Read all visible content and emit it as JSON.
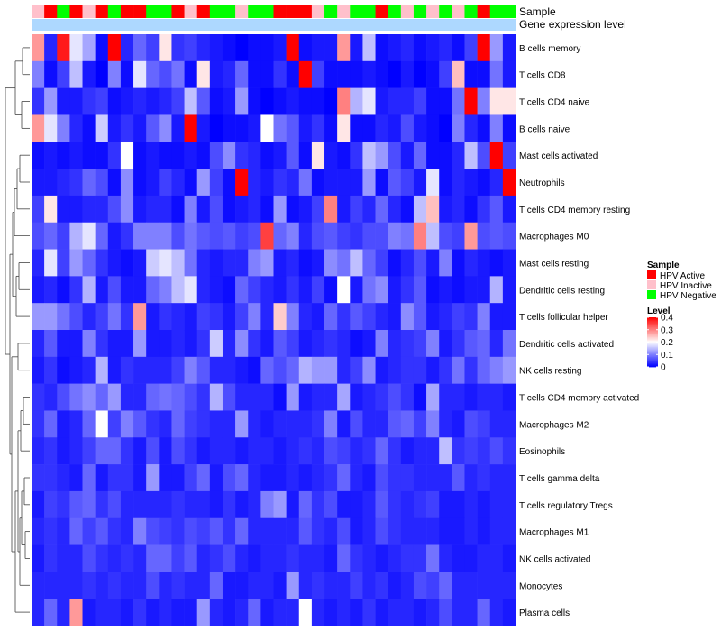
{
  "chart_data": {
    "type": "heatmap",
    "annotation_tracks": [
      {
        "name": "Sample",
        "values": [
          "HPV Inactive",
          "HPV Active",
          "HPV Negative",
          "HPV Active",
          "HPV Inactive",
          "HPV Active",
          "HPV Negative",
          "HPV Active",
          "HPV Active",
          "HPV Negative",
          "HPV Negative",
          "HPV Active",
          "HPV Inactive",
          "HPV Active",
          "HPV Negative",
          "HPV Negative",
          "HPV Inactive",
          "HPV Negative",
          "HPV Negative",
          "HPV Active",
          "HPV Active",
          "HPV Active",
          "HPV Inactive",
          "HPV Negative",
          "HPV Inactive",
          "HPV Negative",
          "HPV Negative",
          "HPV Active",
          "HPV Negative",
          "HPV Inactive",
          "HPV Negative",
          "HPV Inactive",
          "HPV Negative",
          "HPV Inactive",
          "HPV Negative",
          "HPV Active",
          "HPV Negative",
          "HPV Negative"
        ]
      },
      {
        "name": "Gene expression level"
      }
    ],
    "rows": [
      "B cells memory",
      "T cells CD8",
      "T cells CD4 naive",
      "B cells naive",
      "Mast cells activated",
      "Neutrophils",
      "T cells CD4 memory resting",
      "Macrophages M0",
      "Mast cells resting",
      "Dendritic cells resting",
      "T cells follicular helper",
      "Dendritic cells activated",
      "NK cells resting",
      "T cells CD4 memory activated",
      "Macrophages M2",
      "Eosinophils",
      "T cells gamma delta",
      "T cells regulatory  Tregs",
      "Macrophages M1",
      "NK cells activated",
      "Monocytes",
      "Plasma cells"
    ],
    "n_columns": 38,
    "values": [
      [
        0.28,
        0.03,
        0.38,
        0.18,
        0.13,
        0.01,
        0.4,
        0.03,
        0.08,
        0.05,
        0.22,
        0.04,
        0.05,
        0.03,
        0.02,
        0.01,
        0.0,
        0.01,
        0.01,
        0.02,
        0.4,
        0.01,
        0.02,
        0.02,
        0.28,
        0.02,
        0.15,
        0.01,
        0.02,
        0.03,
        0.01,
        0.02,
        0.03,
        0.01,
        0.05,
        0.4,
        0.12,
        0.02
      ],
      [
        0.1,
        0.01,
        0.05,
        0.15,
        0.02,
        0.0,
        0.1,
        0.01,
        0.18,
        0.08,
        0.06,
        0.09,
        0.01,
        0.22,
        0.02,
        0.03,
        0.08,
        0.01,
        0.01,
        0.04,
        0.01,
        0.4,
        0.05,
        0.01,
        0.01,
        0.01,
        0.02,
        0.01,
        0.0,
        0.02,
        0.0,
        0.01,
        0.05,
        0.25,
        0.01,
        0.01,
        0.09,
        0.02
      ],
      [
        0.04,
        0.12,
        0.02,
        0.02,
        0.04,
        0.05,
        0.01,
        0.02,
        0.03,
        0.02,
        0.03,
        0.05,
        0.15,
        0.07,
        0.01,
        0.02,
        0.12,
        0.01,
        0.0,
        0.01,
        0.02,
        0.01,
        0.01,
        0.0,
        0.3,
        0.14,
        0.18,
        0.02,
        0.03,
        0.03,
        0.05,
        0.01,
        0.01,
        0.09,
        0.4,
        0.1,
        0.22,
        0.22
      ],
      [
        0.28,
        0.18,
        0.1,
        0.03,
        0.01,
        0.16,
        0.02,
        0.04,
        0.02,
        0.07,
        0.11,
        0.02,
        0.4,
        0.02,
        0.0,
        0.01,
        0.01,
        0.02,
        0.2,
        0.09,
        0.07,
        0.02,
        0.04,
        0.01,
        0.22,
        0.01,
        0.01,
        0.03,
        0.02,
        0.06,
        0.02,
        0.01,
        0.0,
        0.1,
        0.03,
        0.01,
        0.1,
        0.01
      ],
      [
        0.01,
        0.02,
        0.01,
        0.02,
        0.01,
        0.01,
        0.04,
        0.2,
        0.01,
        0.02,
        0.01,
        0.01,
        0.02,
        0.01,
        0.06,
        0.11,
        0.04,
        0.03,
        0.01,
        0.02,
        0.07,
        0.01,
        0.22,
        0.02,
        0.01,
        0.04,
        0.15,
        0.12,
        0.06,
        0.02,
        0.08,
        0.01,
        0.01,
        0.03,
        0.15,
        0.06,
        0.4,
        0.05
      ],
      [
        0.02,
        0.02,
        0.03,
        0.04,
        0.08,
        0.06,
        0.01,
        0.11,
        0.01,
        0.02,
        0.05,
        0.03,
        0.01,
        0.12,
        0.05,
        0.01,
        0.4,
        0.03,
        0.02,
        0.04,
        0.03,
        0.09,
        0.01,
        0.02,
        0.02,
        0.02,
        0.12,
        0.01,
        0.07,
        0.05,
        0.02,
        0.18,
        0.01,
        0.03,
        0.02,
        0.01,
        0.03,
        0.4
      ],
      [
        0.05,
        0.22,
        0.02,
        0.02,
        0.03,
        0.03,
        0.06,
        0.11,
        0.02,
        0.03,
        0.03,
        0.01,
        0.1,
        0.02,
        0.06,
        0.01,
        0.02,
        0.03,
        0.01,
        0.12,
        0.01,
        0.02,
        0.05,
        0.3,
        0.02,
        0.05,
        0.03,
        0.08,
        0.03,
        0.01,
        0.15,
        0.25,
        0.02,
        0.03,
        0.01,
        0.04,
        0.07,
        0.02
      ],
      [
        0.06,
        0.08,
        0.05,
        0.14,
        0.18,
        0.08,
        0.02,
        0.04,
        0.1,
        0.1,
        0.1,
        0.06,
        0.09,
        0.07,
        0.06,
        0.07,
        0.05,
        0.06,
        0.35,
        0.08,
        0.1,
        0.03,
        0.06,
        0.07,
        0.05,
        0.04,
        0.06,
        0.06,
        0.1,
        0.09,
        0.3,
        0.15,
        0.06,
        0.05,
        0.28,
        0.06,
        0.07,
        0.06
      ],
      [
        0.03,
        0.18,
        0.05,
        0.12,
        0.08,
        0.04,
        0.02,
        0.01,
        0.02,
        0.16,
        0.18,
        0.15,
        0.09,
        0.03,
        0.02,
        0.03,
        0.03,
        0.1,
        0.12,
        0.02,
        0.03,
        0.01,
        0.02,
        0.11,
        0.09,
        0.15,
        0.08,
        0.05,
        0.01,
        0.03,
        0.06,
        0.02,
        0.1,
        0.01,
        0.03,
        0.02,
        0.01,
        0.02
      ],
      [
        0.02,
        0.03,
        0.01,
        0.04,
        0.14,
        0.02,
        0.06,
        0.02,
        0.02,
        0.08,
        0.1,
        0.15,
        0.18,
        0.03,
        0.02,
        0.01,
        0.08,
        0.05,
        0.03,
        0.02,
        0.04,
        0.02,
        0.05,
        0.01,
        0.2,
        0.02,
        0.09,
        0.11,
        0.02,
        0.04,
        0.07,
        0.01,
        0.02,
        0.01,
        0.02,
        0.02,
        0.14,
        0.02
      ],
      [
        0.12,
        0.12,
        0.09,
        0.06,
        0.03,
        0.05,
        0.09,
        0.04,
        0.28,
        0.02,
        0.04,
        0.03,
        0.02,
        0.05,
        0.04,
        0.02,
        0.05,
        0.1,
        0.03,
        0.24,
        0.1,
        0.03,
        0.02,
        0.08,
        0.04,
        0.07,
        0.05,
        0.03,
        0.02,
        0.11,
        0.07,
        0.02,
        0.03,
        0.05,
        0.04,
        0.1,
        0.02,
        0.02
      ],
      [
        0.03,
        0.07,
        0.02,
        0.02,
        0.1,
        0.04,
        0.02,
        0.02,
        0.12,
        0.02,
        0.02,
        0.03,
        0.02,
        0.04,
        0.16,
        0.03,
        0.11,
        0.04,
        0.02,
        0.07,
        0.05,
        0.02,
        0.03,
        0.04,
        0.03,
        0.01,
        0.02,
        0.1,
        0.03,
        0.04,
        0.05,
        0.1,
        0.02,
        0.04,
        0.07,
        0.08,
        0.03,
        0.09
      ],
      [
        0.02,
        0.04,
        0.01,
        0.02,
        0.03,
        0.14,
        0.02,
        0.04,
        0.03,
        0.03,
        0.03,
        0.05,
        0.1,
        0.07,
        0.03,
        0.03,
        0.02,
        0.01,
        0.08,
        0.06,
        0.08,
        0.14,
        0.12,
        0.12,
        0.03,
        0.05,
        0.11,
        0.02,
        0.03,
        0.04,
        0.04,
        0.02,
        0.04,
        0.09,
        0.04,
        0.08,
        0.1,
        0.12
      ],
      [
        0.04,
        0.03,
        0.06,
        0.09,
        0.11,
        0.08,
        0.12,
        0.03,
        0.03,
        0.08,
        0.09,
        0.08,
        0.06,
        0.04,
        0.14,
        0.06,
        0.03,
        0.03,
        0.03,
        0.01,
        0.12,
        0.02,
        0.03,
        0.03,
        0.13,
        0.02,
        0.03,
        0.04,
        0.06,
        0.04,
        0.01,
        0.13,
        0.03,
        0.03,
        0.02,
        0.03,
        0.03,
        0.02
      ],
      [
        0.04,
        0.08,
        0.02,
        0.03,
        0.08,
        0.2,
        0.05,
        0.1,
        0.07,
        0.04,
        0.03,
        0.08,
        0.05,
        0.04,
        0.03,
        0.03,
        0.12,
        0.03,
        0.02,
        0.03,
        0.03,
        0.03,
        0.04,
        0.1,
        0.02,
        0.06,
        0.03,
        0.03,
        0.07,
        0.08,
        0.05,
        0.1,
        0.03,
        0.02,
        0.06,
        0.05,
        0.03,
        0.03
      ],
      [
        0.03,
        0.04,
        0.02,
        0.03,
        0.05,
        0.08,
        0.08,
        0.04,
        0.02,
        0.06,
        0.02,
        0.06,
        0.04,
        0.02,
        0.03,
        0.03,
        0.02,
        0.03,
        0.03,
        0.02,
        0.03,
        0.04,
        0.03,
        0.06,
        0.05,
        0.03,
        0.04,
        0.08,
        0.04,
        0.02,
        0.03,
        0.03,
        0.15,
        0.04,
        0.05,
        0.04,
        0.06,
        0.04
      ],
      [
        0.04,
        0.04,
        0.03,
        0.02,
        0.08,
        0.02,
        0.04,
        0.04,
        0.02,
        0.12,
        0.02,
        0.02,
        0.05,
        0.08,
        0.02,
        0.06,
        0.08,
        0.03,
        0.02,
        0.02,
        0.03,
        0.02,
        0.03,
        0.04,
        0.08,
        0.03,
        0.02,
        0.06,
        0.04,
        0.04,
        0.03,
        0.03,
        0.03,
        0.07,
        0.03,
        0.04,
        0.03,
        0.03
      ],
      [
        0.02,
        0.05,
        0.04,
        0.07,
        0.08,
        0.04,
        0.06,
        0.03,
        0.03,
        0.03,
        0.03,
        0.04,
        0.03,
        0.03,
        0.02,
        0.04,
        0.02,
        0.03,
        0.1,
        0.12,
        0.02,
        0.08,
        0.04,
        0.06,
        0.02,
        0.02,
        0.03,
        0.07,
        0.04,
        0.03,
        0.04,
        0.05,
        0.02,
        0.02,
        0.03,
        0.02,
        0.03,
        0.03
      ],
      [
        0.03,
        0.04,
        0.03,
        0.08,
        0.05,
        0.07,
        0.04,
        0.03,
        0.1,
        0.06,
        0.05,
        0.04,
        0.06,
        0.05,
        0.07,
        0.04,
        0.08,
        0.03,
        0.03,
        0.03,
        0.03,
        0.07,
        0.04,
        0.03,
        0.06,
        0.02,
        0.03,
        0.06,
        0.04,
        0.03,
        0.03,
        0.03,
        0.02,
        0.02,
        0.03,
        0.02,
        0.03,
        0.03
      ],
      [
        0.02,
        0.04,
        0.03,
        0.03,
        0.06,
        0.04,
        0.03,
        0.04,
        0.03,
        0.08,
        0.08,
        0.05,
        0.07,
        0.03,
        0.04,
        0.06,
        0.03,
        0.02,
        0.03,
        0.03,
        0.04,
        0.03,
        0.03,
        0.02,
        0.08,
        0.04,
        0.03,
        0.02,
        0.03,
        0.04,
        0.04,
        0.09,
        0.03,
        0.02,
        0.02,
        0.03,
        0.03,
        0.02
      ],
      [
        0.03,
        0.03,
        0.03,
        0.03,
        0.04,
        0.03,
        0.04,
        0.03,
        0.03,
        0.06,
        0.03,
        0.04,
        0.03,
        0.03,
        0.08,
        0.02,
        0.02,
        0.03,
        0.03,
        0.02,
        0.12,
        0.03,
        0.04,
        0.03,
        0.03,
        0.05,
        0.03,
        0.04,
        0.02,
        0.03,
        0.06,
        0.05,
        0.08,
        0.03,
        0.03,
        0.03,
        0.03,
        0.03
      ],
      [
        0.03,
        0.08,
        0.03,
        0.28,
        0.02,
        0.03,
        0.03,
        0.02,
        0.04,
        0.02,
        0.03,
        0.02,
        0.02,
        0.12,
        0.03,
        0.02,
        0.03,
        0.08,
        0.02,
        0.03,
        0.03,
        0.2,
        0.03,
        0.02,
        0.03,
        0.02,
        0.04,
        0.02,
        0.03,
        0.03,
        0.02,
        0.03,
        0.06,
        0.03,
        0.03,
        0.08,
        0.03,
        0.02
      ]
    ],
    "legend": {
      "sample_title": "Sample",
      "sample_entries": [
        {
          "label": "HPV Active",
          "color": "#ff0000"
        },
        {
          "label": "HPV Inactive",
          "color": "#ffc0cb"
        },
        {
          "label": "HPV Negative",
          "color": "#00ff00"
        }
      ],
      "level_title": "Level",
      "level_ticks": [
        0.4,
        0.3,
        0.2,
        0.1,
        0
      ],
      "level_range": [
        0,
        0.4
      ]
    },
    "colors": {
      "low": "#0000ff",
      "mid": "#ffffff",
      "high": "#ff0000",
      "gene_track": "#add8ff"
    }
  }
}
